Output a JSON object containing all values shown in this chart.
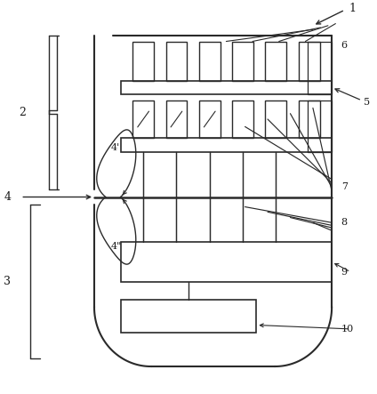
{
  "bg_color": "#ffffff",
  "line_color": "#2a2a2a",
  "label_color": "#1a1a1a",
  "fig_width": 4.24,
  "fig_height": 4.43,
  "dpi": 100
}
